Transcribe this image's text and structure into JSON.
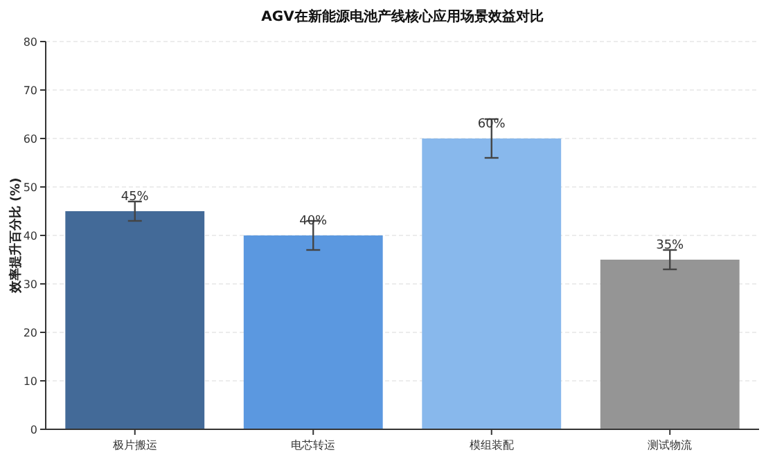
{
  "chart_data": {
    "type": "bar",
    "title": "AGV在新能源电池产线核心应用场景效益对比",
    "ylabel": "效率提升百分比 (%)",
    "categories": [
      "极片搬运",
      "电芯转运",
      "模组装配",
      "测试物流"
    ],
    "values": [
      45,
      40,
      60,
      35
    ],
    "colors": [
      "#436a98",
      "#5b98e0",
      "#88b8ec",
      "#959595"
    ],
    "errors": [
      2,
      3,
      4,
      2
    ],
    "value_labels": [
      "45%",
      "40%",
      "60%",
      "35%"
    ],
    "ylim": [
      0,
      80
    ],
    "yticks": [
      0,
      10,
      20,
      30,
      40,
      50,
      60,
      70,
      80
    ],
    "grid": "y"
  }
}
